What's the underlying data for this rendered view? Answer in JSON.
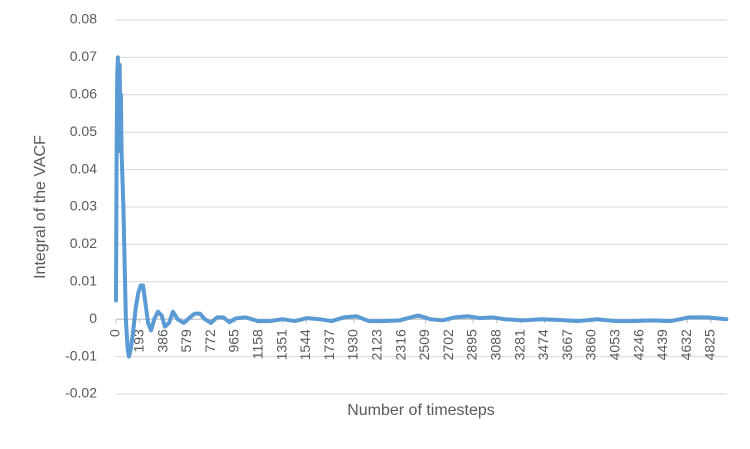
{
  "chart_data": {
    "type": "line",
    "x_label": "Number of timesteps",
    "y_label": "Integral of the VACF",
    "x": [
      0,
      5,
      10,
      15,
      20,
      25,
      30,
      35,
      40,
      45,
      50,
      60,
      70,
      80,
      95,
      105,
      120,
      140,
      160,
      180,
      200,
      219,
      240,
      260,
      284,
      310,
      340,
      370,
      397,
      430,
      462,
      500,
      550,
      600,
      640,
      680,
      720,
      770,
      820,
      870,
      920,
      970,
      1050,
      1150,
      1250,
      1350,
      1450,
      1550,
      1650,
      1750,
      1850,
      1950,
      2050,
      2150,
      2300,
      2450,
      2550,
      2650,
      2750,
      2850,
      2950,
      3050,
      3150,
      3300,
      3450,
      3600,
      3750,
      3900,
      4050,
      4200,
      4350,
      4500,
      4650,
      4800,
      4950
    ],
    "series": [
      {
        "color": "#5b9bd5",
        "values": [
          0.005,
          0.045,
          0.065,
          0.07,
          0.06,
          0.045,
          0.068,
          0.05,
          0.06,
          0.045,
          0.04,
          0.03,
          0.015,
          0,
          -0.008,
          -0.01,
          -0.008,
          -0.003,
          0.003,
          0.007,
          0.009,
          0.009,
          0.004,
          -0.001,
          -0.003,
          0,
          0.002,
          0.001,
          -0.002,
          -0.001,
          0.002,
          0,
          -0.001,
          0.0005,
          0.0015,
          0.0015,
          0,
          -0.001,
          0.0005,
          0.0005,
          -0.0008,
          0.0002,
          0.0005,
          -0.0005,
          -0.0005,
          0,
          -0.0005,
          0.0003,
          0,
          -0.0005,
          0.0005,
          0.0008,
          -0.0005,
          -0.0005,
          -0.0003,
          0.001,
          0,
          -0.0003,
          0.0005,
          0.0008,
          0.0003,
          0.0005,
          0,
          -0.0003,
          0,
          -0.0002,
          -0.0005,
          0,
          -0.0005,
          -0.0005,
          -0.0003,
          -0.0005,
          0.0005,
          0.0005,
          0
        ]
      }
    ],
    "xlim": [
      0,
      4955
    ],
    "xticks": [
      0,
      193,
      386,
      579,
      772,
      965,
      1158,
      1351,
      1544,
      1737,
      1930,
      2123,
      2316,
      2509,
      2702,
      2895,
      3088,
      3281,
      3474,
      3667,
      3860,
      4053,
      4246,
      4439,
      4632,
      4825
    ],
    "ylim": [
      -0.02,
      0.08
    ],
    "yticks": [
      -0.02,
      -0.01,
      0,
      0.01,
      0.02,
      0.03,
      0.04,
      0.05,
      0.06,
      0.07,
      0.08
    ],
    "grid": true
  }
}
